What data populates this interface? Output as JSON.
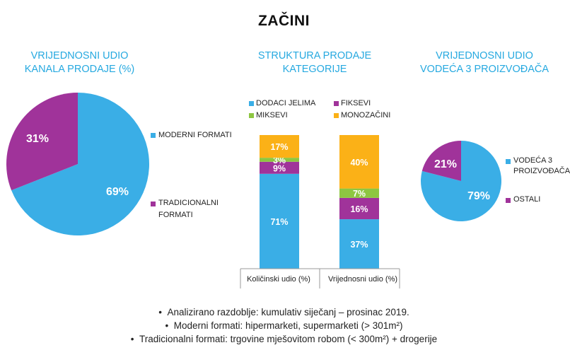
{
  "title": "ZAČINI",
  "colors": {
    "blue": "#3aaee6",
    "purple": "#a0339a",
    "green": "#8dc641",
    "orange": "#fbb117",
    "title_blue": "#26a9e0"
  },
  "chart_data": [
    {
      "type": "pie",
      "title": [
        "VRIJEDNOSNI UDIO",
        "KANALA PRODAJE (%)"
      ],
      "slices": [
        {
          "label": "MODERNI FORMATI",
          "value": 69,
          "display": "69%"
        },
        {
          "label": "TRADICIONALNI FORMATI",
          "value": 31,
          "display": "31%"
        }
      ],
      "legend": [
        "MODERNI FORMATI",
        "TRADICIONALNI",
        "FORMATI"
      ]
    },
    {
      "type": "bar",
      "stacked": true,
      "title": [
        "STRUKTURA PRODAJE",
        "KATEGORIJE"
      ],
      "categories": [
        "Količinski udio (%)",
        "Vrijednosni udio (%)"
      ],
      "series": [
        {
          "name": "DODACI JELIMA",
          "values": [
            71,
            37
          ],
          "labels": [
            "71%",
            "37%"
          ]
        },
        {
          "name": "FIKSEVI",
          "values": [
            9,
            16
          ],
          "labels": [
            "9%",
            "16%"
          ]
        },
        {
          "name": "MIKSEVI",
          "values": [
            3,
            7
          ],
          "labels": [
            "3%",
            "7%"
          ]
        },
        {
          "name": "MONOZAČINI",
          "values": [
            17,
            40
          ],
          "labels": [
            "17%",
            "40%"
          ]
        }
      ],
      "ylim": [
        0,
        100
      ]
    },
    {
      "type": "pie",
      "title": [
        "VRIJEDNOSNI UDIO",
        "VODEĆA 3 PROIZVOĐAČA"
      ],
      "slices": [
        {
          "label": "VODEĆA 3 PROIZVOĐAČA",
          "value": 79,
          "display": "79%"
        },
        {
          "label": "OSTALI",
          "value": 21,
          "display": "21%"
        }
      ],
      "legend": [
        "VODEĆA 3",
        "PROIZVOĐAČA",
        "OSTALI"
      ]
    }
  ],
  "footnotes": [
    "Analizirano razdoblje: kumulativ siječanj – prosinac 2019.",
    "Moderni formati: hipermarketi, supermarketi (> 301m²)",
    "Tradicionalni formati: trgovine mješovitom robom (< 300m²) + drogerije"
  ]
}
